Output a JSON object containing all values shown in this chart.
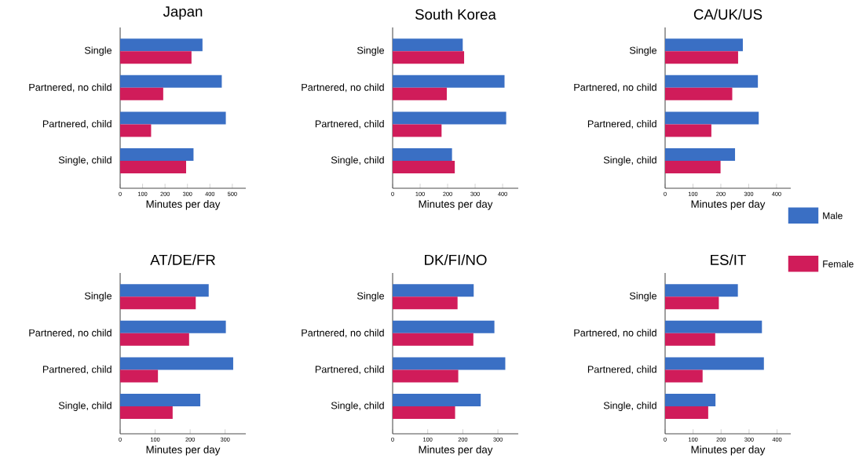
{
  "chart_data": [
    {
      "type": "bar",
      "orientation": "horizontal",
      "title": "Japan",
      "xlabel": "Minutes per day",
      "categories": [
        "Single",
        "Partnered, no child",
        "Partnered, child",
        "Single, child"
      ],
      "series": [
        {
          "color": "#3a6fc4",
          "values": [
            367,
            453,
            471,
            327
          ]
        },
        {
          "color": "#d01c5a",
          "values": [
            318,
            192,
            138,
            294
          ]
        }
      ],
      "xlim": [
        0,
        560
      ],
      "xticks": [
        0,
        100,
        200,
        300,
        400,
        500
      ]
    },
    {
      "type": "bar",
      "orientation": "horizontal",
      "title": "South Korea",
      "xlabel": "Minutes per day",
      "categories": [
        "Single",
        "Partnered, no child",
        "Partnered, child",
        "Single, child"
      ],
      "series": [
        {
          "color": "#3a6fc4",
          "values": [
            255,
            407,
            413,
            216
          ]
        },
        {
          "color": "#d01c5a",
          "values": [
            260,
            197,
            178,
            226
          ]
        }
      ],
      "xlim": [
        0,
        457
      ],
      "xticks": [
        0,
        100,
        200,
        300,
        400
      ]
    },
    {
      "type": "bar",
      "orientation": "horizontal",
      "title": "CA/UK/US",
      "xlabel": "Minutes per day",
      "categories": [
        "Single",
        "Partnered, no child",
        "Partnered, child",
        "Single, child"
      ],
      "series": [
        {
          "name": "Male",
          "color": "#3a6fc4",
          "values": [
            279,
            333,
            336,
            251
          ]
        },
        {
          "name": "Female",
          "color": "#d01c5a",
          "values": [
            262,
            241,
            166,
            199
          ]
        }
      ],
      "xlim": [
        0,
        451
      ],
      "xticks": [
        0,
        100,
        200,
        300,
        400
      ],
      "legend": "right"
    },
    {
      "type": "bar",
      "orientation": "horizontal",
      "title": "AT/DE/FR",
      "xlabel": "Minutes per day",
      "categories": [
        "Single",
        "Partnered, no child",
        "Partnered, child",
        "Single, child"
      ],
      "series": [
        {
          "color": "#3a6fc4",
          "values": [
            253,
            302,
            323,
            229
          ]
        },
        {
          "color": "#d01c5a",
          "values": [
            216,
            197,
            108,
            150
          ]
        }
      ],
      "xlim": [
        0,
        359
      ],
      "xticks": [
        0,
        100,
        200,
        300
      ]
    },
    {
      "type": "bar",
      "orientation": "horizontal",
      "title": "DK/FI/NO",
      "xlabel": "Minutes per day",
      "categories": [
        "Single",
        "Partnered, no child",
        "Partnered, child",
        "Single, child"
      ],
      "series": [
        {
          "color": "#3a6fc4",
          "values": [
            231,
            290,
            321,
            251
          ]
        },
        {
          "color": "#d01c5a",
          "values": [
            185,
            230,
            187,
            178
          ]
        }
      ],
      "xlim": [
        0,
        358
      ],
      "xticks": [
        0,
        100,
        200,
        300
      ]
    },
    {
      "type": "bar",
      "orientation": "horizontal",
      "title": "ES/IT",
      "xlabel": "Minutes per day",
      "categories": [
        "Single",
        "Partnered, no child",
        "Partnered, child",
        "Single, child"
      ],
      "series": [
        {
          "color": "#3a6fc4",
          "values": [
            260,
            346,
            353,
            180
          ]
        },
        {
          "color": "#d01c5a",
          "values": [
            192,
            179,
            134,
            154
          ]
        }
      ],
      "xlim": [
        0,
        449
      ],
      "xticks": [
        0,
        100,
        200,
        300,
        400
      ]
    }
  ]
}
